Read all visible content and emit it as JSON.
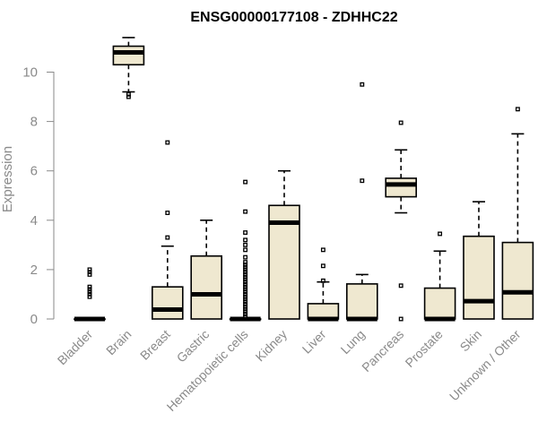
{
  "chart_data": {
    "type": "boxplot",
    "title": "ENSG00000177108 - ZDHHC22",
    "ylabel": "Expression",
    "xlabel": "",
    "ylim": [
      0,
      11.5
    ],
    "yticks": [
      0,
      2,
      4,
      6,
      8,
      10
    ],
    "colors": {
      "box_fill": "#efe8d0",
      "box_stroke": "#000000",
      "axis": "#8a8a8a"
    },
    "categories": [
      "Bladder",
      "Brain",
      "Breast",
      "Gastric",
      "Hematopoietic cells",
      "Kidney",
      "Liver",
      "Lung",
      "Pancreas",
      "Prostate",
      "Skin",
      "Unknown / Other"
    ],
    "boxes": [
      {
        "category": "Bladder",
        "low": 0,
        "q1": 0,
        "median": 0,
        "q3": 0,
        "high": 0,
        "outliers": [
          0.9,
          1.0,
          1.1,
          1.2,
          1.3,
          1.8,
          1.9,
          2.0
        ]
      },
      {
        "category": "Brain",
        "low": 9.2,
        "q1": 10.3,
        "median": 10.8,
        "q3": 11.05,
        "high": 11.4,
        "outliers": [
          9.0,
          9.1
        ]
      },
      {
        "category": "Breast",
        "low": 0,
        "q1": 0,
        "median": 0.38,
        "q3": 1.3,
        "high": 2.95,
        "outliers": [
          3.3,
          4.3,
          7.15
        ]
      },
      {
        "category": "Gastric",
        "low": 0,
        "q1": 0,
        "median": 1.0,
        "q3": 2.55,
        "high": 4.0,
        "outliers": []
      },
      {
        "category": "Hematopoietic cells",
        "low": 0,
        "q1": 0,
        "median": 0,
        "q3": 0,
        "high": 0,
        "outliers": [
          0.1,
          0.2,
          0.3,
          0.4,
          0.5,
          0.6,
          0.7,
          0.8,
          0.9,
          1.0,
          1.1,
          1.2,
          1.3,
          1.4,
          1.5,
          1.6,
          1.7,
          1.8,
          1.9,
          2.0,
          2.1,
          2.2,
          2.3,
          2.5,
          2.8,
          3.0,
          3.2,
          3.5,
          4.35,
          5.55
        ]
      },
      {
        "category": "Kidney",
        "low": 0,
        "q1": 0,
        "median": 3.9,
        "q3": 4.6,
        "high": 6.0,
        "outliers": []
      },
      {
        "category": "Liver",
        "low": 0,
        "q1": 0,
        "median": 0,
        "q3": 0.62,
        "high": 1.5,
        "outliers": [
          1.55,
          2.15,
          2.8
        ]
      },
      {
        "category": "Lung",
        "low": 0,
        "q1": 0,
        "median": 0,
        "q3": 1.42,
        "high": 1.8,
        "outliers": [
          5.6,
          9.5
        ]
      },
      {
        "category": "Pancreas",
        "low": 4.3,
        "q1": 4.95,
        "median": 5.45,
        "q3": 5.7,
        "high": 6.85,
        "outliers": [
          0,
          1.35,
          7.95
        ]
      },
      {
        "category": "Prostate",
        "low": 0,
        "q1": 0,
        "median": 0,
        "q3": 1.25,
        "high": 2.75,
        "outliers": [
          3.45
        ]
      },
      {
        "category": "Skin",
        "low": 0,
        "q1": 0,
        "median": 0.72,
        "q3": 3.35,
        "high": 4.75,
        "outliers": []
      },
      {
        "category": "Unknown / Other",
        "low": 0,
        "q1": 0,
        "median": 1.08,
        "q3": 3.1,
        "high": 7.5,
        "outliers": [
          8.5
        ]
      }
    ]
  }
}
